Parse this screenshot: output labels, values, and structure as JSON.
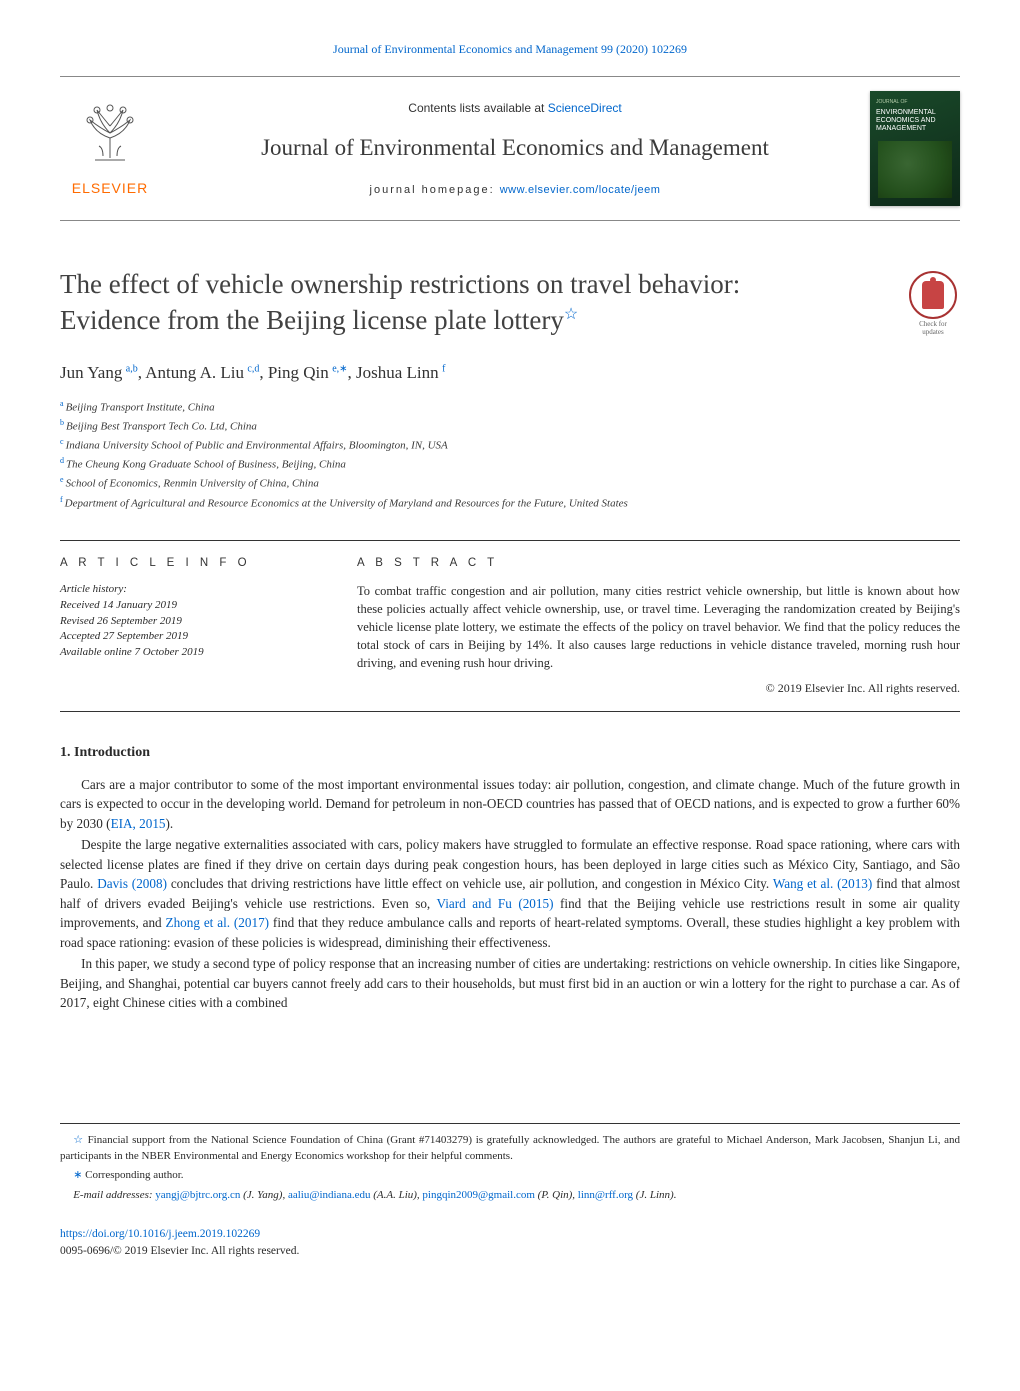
{
  "colors": {
    "link": "#0066cc",
    "text": "#2a2a2a",
    "elsevier_orange": "#ff6b00",
    "badge_red": "#c74444",
    "rule": "#333333",
    "background": "#ffffff"
  },
  "header": {
    "journal_ref": "Journal of Environmental Economics and Management 99 (2020) 102269",
    "contents_prefix": "Contents lists available at ",
    "contents_link": "ScienceDirect",
    "journal_name": "Journal of Environmental Economics and Management",
    "homepage_prefix": "journal homepage: ",
    "homepage_link": "www.elsevier.com/locate/jeem",
    "elsevier_brand": "ELSEVIER",
    "cover_small_top": "JOURNAL OF",
    "cover_small_main": "ENVIRONMENTAL ECONOMICS AND MANAGEMENT",
    "updates_line1": "Check for",
    "updates_line2": "updates"
  },
  "title": {
    "line1": "The effect of vehicle ownership restrictions on travel behavior:",
    "line2": "Evidence from the Beijing license plate lottery",
    "star": "☆"
  },
  "authors_html": "Jun Yang|a,b|, Antung A. Liu|c,d|, Ping Qin|e,∗|, Joshua Linn|f|",
  "authors": [
    {
      "name": "Jun Yang",
      "sup": "a,b"
    },
    {
      "name": "Antung A. Liu",
      "sup": "c,d"
    },
    {
      "name": "Ping Qin",
      "sup": "e,∗"
    },
    {
      "name": "Joshua Linn",
      "sup": "f"
    }
  ],
  "affiliations": [
    {
      "sup": "a",
      "text": "Beijing Transport Institute, China"
    },
    {
      "sup": "b",
      "text": "Beijing Best Transport Tech Co. Ltd, China"
    },
    {
      "sup": "c",
      "text": "Indiana University School of Public and Environmental Affairs, Bloomington, IN, USA"
    },
    {
      "sup": "d",
      "text": "The Cheung Kong Graduate School of Business, Beijing, China"
    },
    {
      "sup": "e",
      "text": "School of Economics, Renmin University of China, China"
    },
    {
      "sup": "f",
      "text": "Department of Agricultural and Resource Economics at the University of Maryland and Resources for the Future, United States"
    }
  ],
  "article_info": {
    "label": "A R T I C L E   I N F O",
    "history_label": "Article history:",
    "lines": [
      "Received 14 January 2019",
      "Revised 26 September 2019",
      "Accepted 27 September 2019",
      "Available online 7 October 2019"
    ]
  },
  "abstract": {
    "label": "A B S T R A C T",
    "text": "To combat traffic congestion and air pollution, many cities restrict vehicle ownership, but little is known about how these policies actually affect vehicle ownership, use, or travel time. Leveraging the randomization created by Beijing's vehicle license plate lottery, we estimate the effects of the policy on travel behavior. We find that the policy reduces the total stock of cars in Beijing by 14%. It also causes large reductions in vehicle distance traveled, morning rush hour driving, and evening rush hour driving.",
    "copyright": "© 2019 Elsevier Inc. All rights reserved."
  },
  "section1": {
    "heading": "1. Introduction",
    "p1_pre": "Cars are a major contributor to some of the most important environmental issues today: air pollution, congestion, and climate change. Much of the future growth in cars is expected to occur in the developing world. Demand for petroleum in non-OECD countries has passed that of OECD nations, and is expected to grow a further 60% by 2030 (",
    "p1_cite": "EIA, 2015",
    "p1_post": ").",
    "p2_1": "Despite the large negative externalities associated with cars, policy makers have struggled to formulate an effective response. Road space rationing, where cars with selected license plates are fined if they drive on certain days during peak congestion hours, has been deployed in large cities such as México City, Santiago, and São Paulo. ",
    "p2_c1": "Davis (2008)",
    "p2_2": " concludes that driving restrictions have little effect on vehicle use, air pollution, and congestion in México City. ",
    "p2_c2": "Wang et al. (2013)",
    "p2_3": " find that almost half of drivers evaded Beijing's vehicle use restrictions. Even so, ",
    "p2_c3": "Viard and Fu (2015)",
    "p2_4": " find that the Beijing vehicle use restrictions result in some air quality improvements, and ",
    "p2_c4": "Zhong et al. (2017)",
    "p2_5": " find that they reduce ambulance calls and reports of heart-related symptoms. Overall, these studies highlight a key problem with road space rationing: evasion of these policies is widespread, diminishing their effectiveness.",
    "p3": "In this paper, we study a second type of policy response that an increasing number of cities are undertaking: restrictions on vehicle ownership. In cities like Singapore, Beijing, and Shanghai, potential car buyers cannot freely add cars to their households, but must first bid in an auction or win a lottery for the right to purchase a car. As of 2017, eight Chinese cities with a combined"
  },
  "footnotes": {
    "funding_mark": "☆",
    "funding": "Financial support from the National Science Foundation of China (Grant #71403279) is gratefully acknowledged. The authors are grateful to Michael Anderson, Mark Jacobsen, Shanjun Li, and participants in the NBER Environmental and Energy Economics workshop for their helpful comments.",
    "corr_mark": "∗",
    "corr": "Corresponding author.",
    "email_label": "E-mail addresses:",
    "emails": [
      {
        "addr": "yangj@bjtrc.org.cn",
        "who": "(J. Yang)"
      },
      {
        "addr": "aaliu@indiana.edu",
        "who": "(A.A. Liu)"
      },
      {
        "addr": "pingqin2009@gmail.com",
        "who": "(P. Qin)"
      },
      {
        "addr": "linn@rff.org",
        "who": "(J. Linn)"
      }
    ]
  },
  "footer": {
    "doi": "https://doi.org/10.1016/j.jeem.2019.102269",
    "issn_line": "0095-0696/© 2019 Elsevier Inc. All rights reserved."
  }
}
